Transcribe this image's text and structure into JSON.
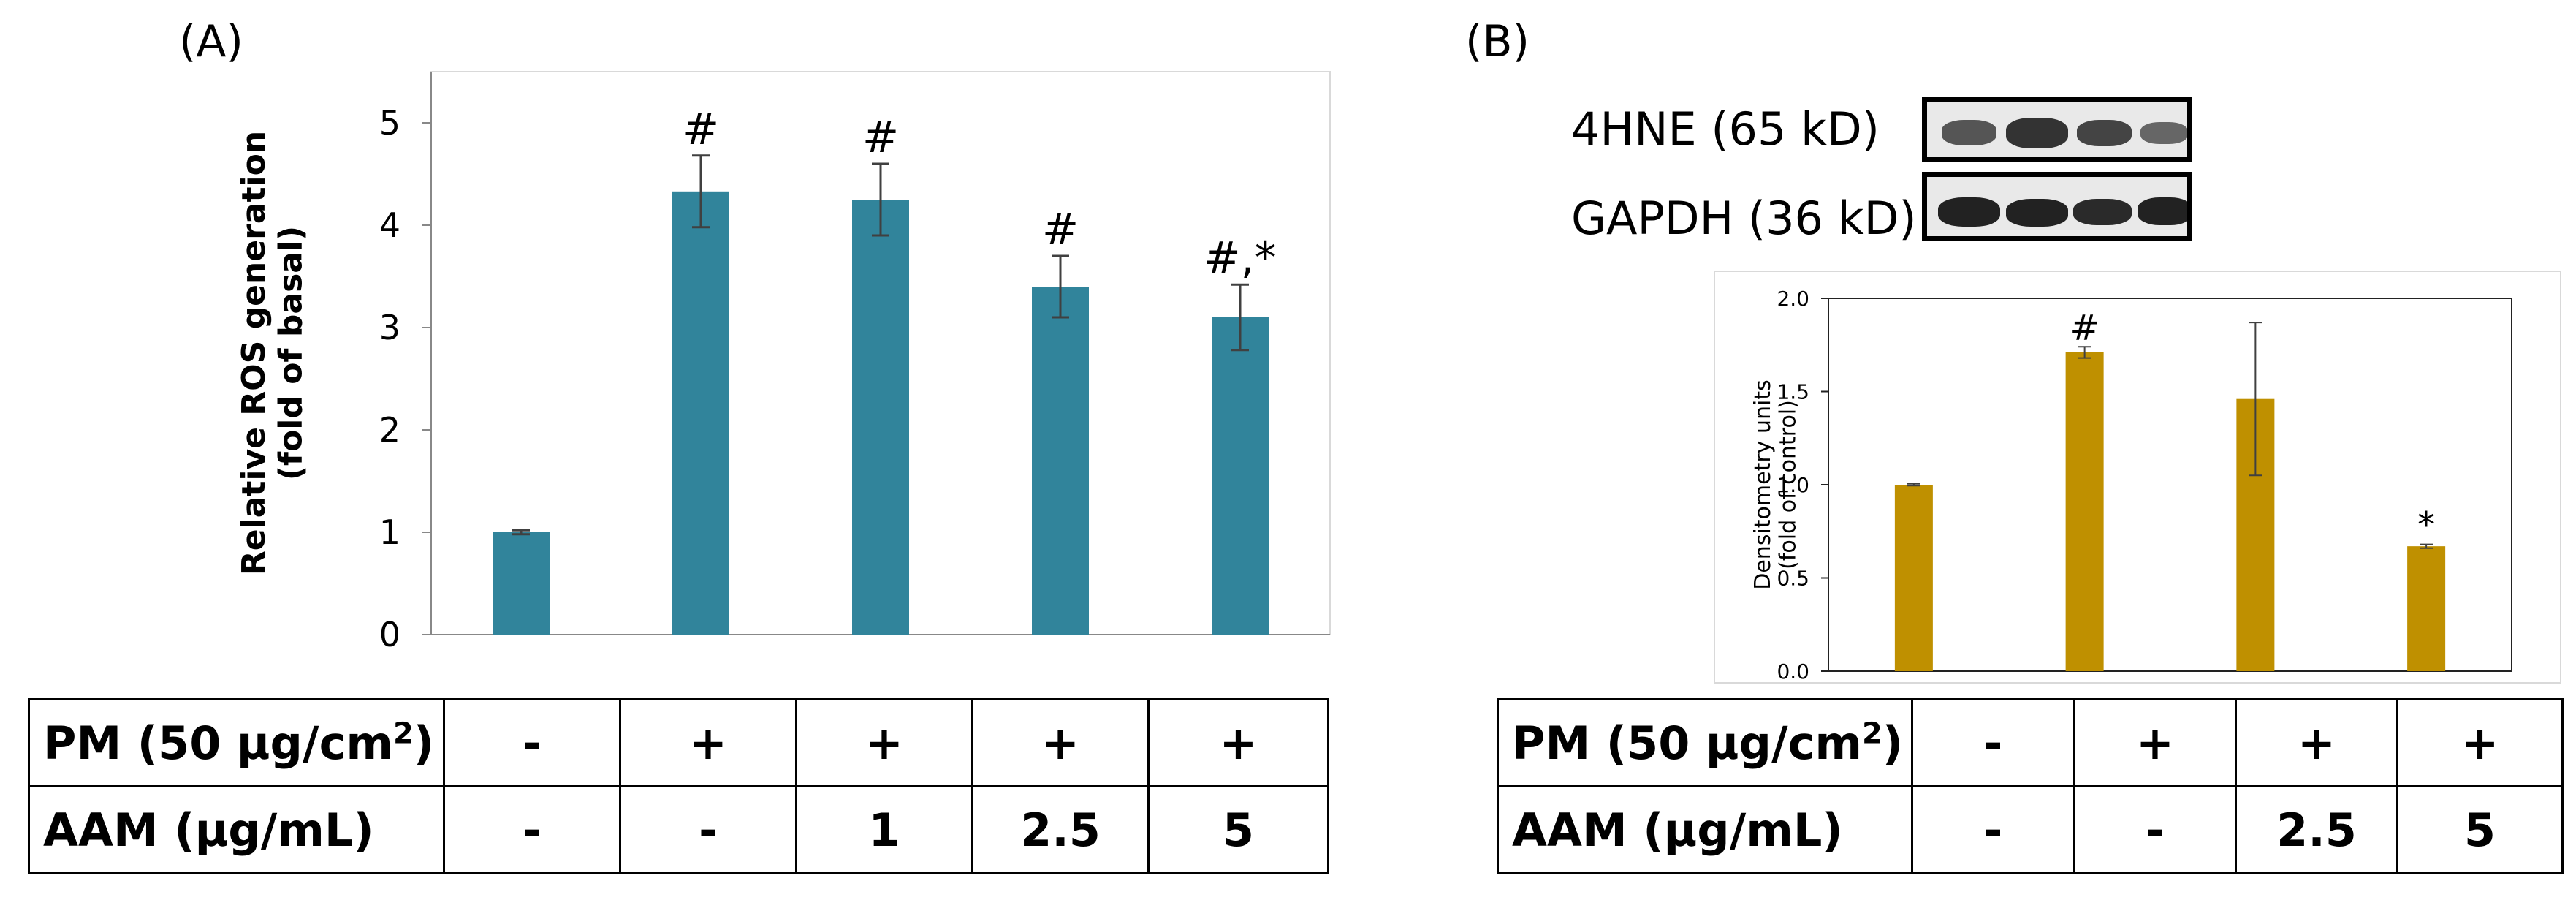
{
  "panel_a": {
    "label": "(A)",
    "ylabel_line1": "Relative ROS generation",
    "ylabel_line2": "(fold of basal)",
    "table": {
      "rows": [
        {
          "label": "PM (50 µg/cm",
          "sup": "2",
          "label_end": ")",
          "cells": [
            "-",
            "+",
            "+",
            "+",
            "+"
          ]
        },
        {
          "label": "AAM (µg/mL)",
          "sup": "",
          "label_end": "",
          "cells": [
            "-",
            "-",
            "1",
            "2.5",
            "5"
          ]
        }
      ]
    }
  },
  "panel_b": {
    "label": "(B)",
    "blots": [
      {
        "label": "4HNE (65 kD)"
      },
      {
        "label": "GAPDH (36 kD)"
      }
    ],
    "ylabel_line1": "Densitometry units",
    "ylabel_line2": "(fold of control)",
    "table": {
      "rows": [
        {
          "label": "PM (50 µg/cm",
          "sup": "2",
          "label_end": ")",
          "cells": [
            "-",
            "+",
            "+",
            "+"
          ]
        },
        {
          "label": "AAM (µg/mL)",
          "sup": "",
          "label_end": "",
          "cells": [
            "-",
            "-",
            "2.5",
            "5"
          ]
        }
      ]
    }
  },
  "chart_data": [
    {
      "type": "bar",
      "panel": "A",
      "ylabel": "Relative ROS generation (fold of basal)",
      "categories": [
        "1",
        "2",
        "3",
        "4",
        "5"
      ],
      "values": [
        1.0,
        4.33,
        4.25,
        3.4,
        3.1
      ],
      "errors": [
        0.02,
        0.35,
        0.35,
        0.3,
        0.32
      ],
      "annotations": [
        "",
        "#",
        "#",
        "#",
        "#,*"
      ],
      "ylim": [
        0,
        5.5
      ],
      "yticks": [
        0,
        1,
        2,
        3,
        4,
        5
      ],
      "bar_color": "#31849B",
      "grid": false
    },
    {
      "type": "bar",
      "panel": "B",
      "ylabel": "Densitometry units (fold of control)",
      "categories": [
        "1",
        "2",
        "3",
        "4"
      ],
      "values": [
        1.0,
        1.71,
        1.46,
        0.67
      ],
      "errors": [
        0.005,
        0.03,
        0.41,
        0.01
      ],
      "annotations": [
        "",
        "#",
        "",
        "*"
      ],
      "ylim": [
        0,
        2.0
      ],
      "yticks": [
        "0.0",
        "0.5",
        "1.0",
        "1.5",
        "2.0"
      ],
      "bar_color": "#BF9000",
      "grid": false
    }
  ]
}
